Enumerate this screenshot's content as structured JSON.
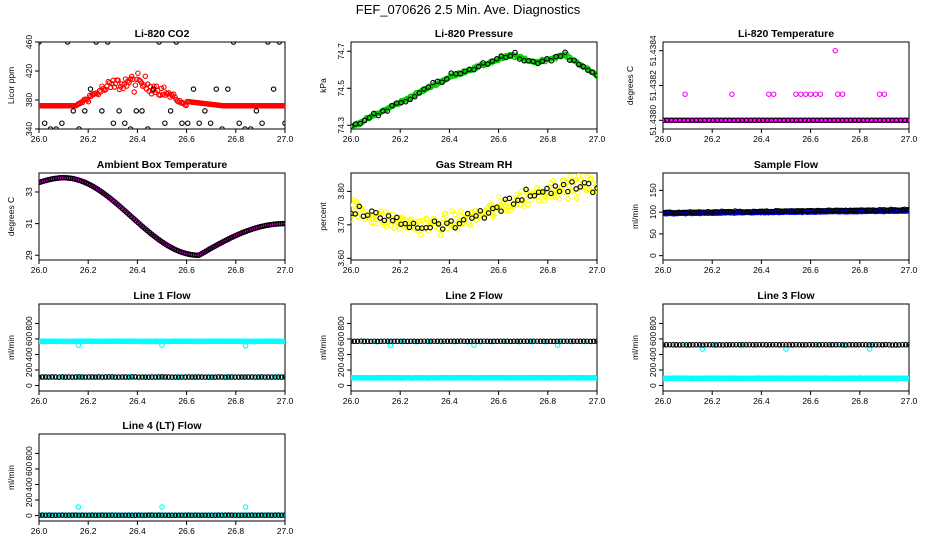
{
  "page": {
    "title": "FEF_070626  2.5 Min. Ave. Diagnostics"
  },
  "colors": {
    "red": "#ff0000",
    "green": "#00cc00",
    "black": "#000000",
    "magenta": "#ff00ff",
    "yellow": "#ffff00",
    "blue": "#0000ff",
    "cyan": "#00ffff"
  },
  "chart_data": [
    {
      "id": "co2",
      "type": "scatter",
      "title": "Li-820 CO2",
      "ylabel": "Licor ppm",
      "xlim": [
        26.0,
        27.0
      ],
      "xticks": [
        26.0,
        26.2,
        26.4,
        26.6,
        26.8,
        27.0
      ],
      "xtick_labels": [
        "26.0",
        "26.2",
        "26.4",
        "26.6",
        "26.8",
        "27.0"
      ],
      "ylim": [
        340,
        460
      ],
      "yticks": [
        340,
        380,
        420,
        460
      ],
      "ytick_labels": [
        "340",
        "380",
        "420",
        "460"
      ],
      "series": [
        {
          "name": "co2-main",
          "color": "red",
          "gen": {
            "kind": "co2",
            "n": 200,
            "base": 372,
            "hump": 32,
            "noise": 26
          }
        },
        {
          "name": "co2-extremes",
          "color": "black",
          "gen": {
            "kind": "levels",
            "n": 44,
            "levels": [
              340,
              348,
              365,
              395,
              460
            ]
          }
        }
      ]
    },
    {
      "id": "pressure",
      "type": "scatter",
      "title": "Li-820 Pressure",
      "ylabel": "kPa",
      "xlim": [
        26.0,
        27.0
      ],
      "xticks": [
        26.0,
        26.2,
        26.4,
        26.6,
        26.8,
        27.0
      ],
      "xtick_labels": [
        "26.0",
        "26.2",
        "26.4",
        "26.6",
        "26.8",
        "27.0"
      ],
      "ylim": [
        74.28,
        74.75
      ],
      "yticks": [
        74.3,
        74.5,
        74.7
      ],
      "ytick_labels": [
        "74.3",
        "74.5",
        "74.7"
      ],
      "series": [
        {
          "name": "pressure-main",
          "color": "green",
          "gen": {
            "kind": "pressure",
            "n": 220,
            "noise": 0.012
          }
        },
        {
          "name": "pressure-alt",
          "color": "black",
          "gen": {
            "kind": "pressure",
            "n": 55,
            "noise": 0.03
          }
        }
      ]
    },
    {
      "id": "licor-temp",
      "type": "scatter",
      "title": "Li-820 Temperature",
      "ylabel": "degrees C",
      "xlim": [
        26.0,
        27.0
      ],
      "xticks": [
        26.0,
        26.2,
        26.4,
        26.6,
        26.8,
        27.0
      ],
      "xtick_labels": [
        "26.0",
        "26.2",
        "26.4",
        "26.6",
        "26.8",
        "27.0"
      ],
      "ylim": [
        51.43795,
        51.43845
      ],
      "yticks": [
        51.438,
        51.4382,
        51.4384
      ],
      "ytick_labels": [
        "51.4380",
        "51.4382",
        "51.4384"
      ],
      "series": [
        {
          "name": "licor-temp-base",
          "color": "magenta",
          "gen": {
            "kind": "flat",
            "n": 230,
            "value": 51.438,
            "noise": 0
          }
        },
        {
          "name": "licor-temp-base-black",
          "color": "black",
          "gen": {
            "kind": "flat",
            "n": 60,
            "value": 51.438,
            "noise": 0
          }
        },
        {
          "name": "licor-temp-highs",
          "color": "magenta",
          "points": [
            [
              26.09,
              51.43815
            ],
            [
              26.28,
              51.43815
            ],
            [
              26.43,
              51.43815
            ],
            [
              26.45,
              51.43815
            ],
            [
              26.54,
              51.43815
            ],
            [
              26.56,
              51.43815
            ],
            [
              26.58,
              51.43815
            ],
            [
              26.6,
              51.43815
            ],
            [
              26.62,
              51.43815
            ],
            [
              26.64,
              51.43815
            ],
            [
              26.71,
              51.43815
            ],
            [
              26.73,
              51.43815
            ],
            [
              26.88,
              51.43815
            ],
            [
              26.9,
              51.43815
            ],
            [
              26.7,
              51.4384
            ]
          ]
        }
      ]
    },
    {
      "id": "box-temp",
      "type": "scatter",
      "title": "Ambient Box Temperature",
      "ylabel": "degrees C",
      "xlim": [
        26.0,
        27.0
      ],
      "xticks": [
        26.0,
        26.2,
        26.4,
        26.6,
        26.8,
        27.0
      ],
      "xtick_labels": [
        "26.0",
        "26.2",
        "26.4",
        "26.6",
        "26.8",
        "27.0"
      ],
      "ylim": [
        28.7,
        34.2
      ],
      "yticks": [
        29,
        31,
        33
      ],
      "ytick_labels": [
        "29",
        "31",
        "33"
      ],
      "series": [
        {
          "name": "box-temp-main",
          "color": "magenta",
          "gen": {
            "kind": "boxtemp",
            "n": 220,
            "noise": 0
          }
        },
        {
          "name": "box-temp-black",
          "color": "black",
          "gen": {
            "kind": "boxtemp",
            "n": 110,
            "noise": 0
          }
        }
      ]
    },
    {
      "id": "rh",
      "type": "scatter",
      "title": "Gas Stream RH",
      "ylabel": "percent",
      "xlim": [
        26.0,
        27.0
      ],
      "xticks": [
        26.0,
        26.2,
        26.4,
        26.6,
        26.8,
        27.0
      ],
      "xtick_labels": [
        "26.0",
        "26.2",
        "26.4",
        "26.6",
        "26.8",
        "27.0"
      ],
      "ylim": [
        3.595,
        3.855
      ],
      "yticks": [
        3.6,
        3.7,
        3.8
      ],
      "ytick_labels": [
        "3.60",
        "3.70",
        "3.80"
      ],
      "series": [
        {
          "name": "rh-main",
          "color": "yellow",
          "gen": {
            "kind": "rh",
            "n": 230,
            "noise": 0.05
          }
        },
        {
          "name": "rh-alt",
          "color": "black",
          "gen": {
            "kind": "rh",
            "n": 60,
            "noise": 0.035
          }
        }
      ]
    },
    {
      "id": "sample-flow",
      "type": "scatter",
      "title": "Sample Flow",
      "ylabel": "ml/min",
      "xlim": [
        26.0,
        27.0
      ],
      "xticks": [
        26.0,
        26.2,
        26.4,
        26.6,
        26.8,
        27.0
      ],
      "xtick_labels": [
        "26.0",
        "26.2",
        "26.4",
        "26.6",
        "26.8",
        "27.0"
      ],
      "ylim": [
        -10,
        190
      ],
      "yticks": [
        0,
        50,
        100,
        150
      ],
      "ytick_labels": [
        "0",
        "50",
        "100",
        "150"
      ],
      "series": [
        {
          "name": "sample-flow-main",
          "color": "blue",
          "gen": {
            "kind": "ramp",
            "n": 220,
            "v0": 97,
            "v1": 103,
            "noise": 2
          }
        },
        {
          "name": "sample-flow-black",
          "color": "black",
          "gen": {
            "kind": "ramp",
            "n": 110,
            "v0": 99,
            "v1": 106,
            "noise": 2
          }
        }
      ]
    },
    {
      "id": "line1",
      "type": "scatter",
      "title": "Line 1 Flow",
      "ylabel": "ml/min",
      "xlim": [
        26.0,
        27.0
      ],
      "xticks": [
        26.0,
        26.2,
        26.4,
        26.6,
        26.8,
        27.0
      ],
      "xtick_labels": [
        "26.0",
        "26.2",
        "26.4",
        "26.6",
        "26.8",
        "27.0"
      ],
      "ylim": [
        -70,
        1050
      ],
      "yticks": [
        0,
        200,
        400,
        600,
        800
      ],
      "ytick_labels": [
        "0",
        "200",
        "400",
        "600",
        "800"
      ],
      "series": [
        {
          "name": "line1-cyan-high",
          "color": "cyan",
          "gen": {
            "kind": "flat",
            "n": 200,
            "value": 570,
            "noise": 6,
            "dips": [
              [
                26.16,
                520
              ],
              [
                26.5,
                520
              ],
              [
                26.84,
                510
              ]
            ]
          }
        },
        {
          "name": "line1-cyan-low",
          "color": "cyan",
          "gen": {
            "kind": "flat",
            "n": 60,
            "value": 110,
            "noise": 4
          }
        },
        {
          "name": "line1-black",
          "color": "black",
          "gen": {
            "kind": "flat",
            "n": 75,
            "value": 110,
            "noise": 3
          }
        }
      ]
    },
    {
      "id": "line2",
      "type": "scatter",
      "title": "Line 2 Flow",
      "ylabel": "ml/min",
      "xlim": [
        26.0,
        27.0
      ],
      "xticks": [
        26.0,
        26.2,
        26.4,
        26.6,
        26.8,
        27.0
      ],
      "xtick_labels": [
        "26.0",
        "26.2",
        "26.4",
        "26.6",
        "26.8",
        "27.0"
      ],
      "ylim": [
        -70,
        1050
      ],
      "yticks": [
        0,
        200,
        400,
        600,
        800
      ],
      "ytick_labels": [
        "0",
        "200",
        "400",
        "600",
        "800"
      ],
      "series": [
        {
          "name": "line2-cyan-low",
          "color": "cyan",
          "gen": {
            "kind": "flat",
            "n": 220,
            "value": 100,
            "noise": 5
          }
        },
        {
          "name": "line2-cyan-high",
          "color": "cyan",
          "gen": {
            "kind": "flat",
            "n": 20,
            "value": 565,
            "noise": 4,
            "dips": [
              [
                26.16,
                520
              ],
              [
                26.5,
                520
              ],
              [
                26.84,
                520
              ]
            ]
          }
        },
        {
          "name": "line2-black",
          "color": "black",
          "gen": {
            "kind": "flat",
            "n": 75,
            "value": 570,
            "noise": 3
          }
        }
      ]
    },
    {
      "id": "line3",
      "type": "scatter",
      "title": "Line 3 Flow",
      "ylabel": "ml/min",
      "xlim": [
        26.0,
        27.0
      ],
      "xticks": [
        26.0,
        26.2,
        26.4,
        26.6,
        26.8,
        27.0
      ],
      "xtick_labels": [
        "26.0",
        "26.2",
        "26.4",
        "26.6",
        "26.8",
        "27.0"
      ],
      "ylim": [
        -70,
        1050
      ],
      "yticks": [
        0,
        200,
        400,
        600,
        800
      ],
      "ytick_labels": [
        "0",
        "200",
        "400",
        "600",
        "800"
      ],
      "series": [
        {
          "name": "line3-cyan-low",
          "color": "cyan",
          "gen": {
            "kind": "flat",
            "n": 220,
            "value": 95,
            "noise": 5
          }
        },
        {
          "name": "line3-cyan-high",
          "color": "cyan",
          "gen": {
            "kind": "flat",
            "n": 20,
            "value": 520,
            "noise": 4,
            "dips": [
              [
                26.16,
                470
              ],
              [
                26.5,
                470
              ],
              [
                26.84,
                470
              ]
            ]
          }
        },
        {
          "name": "line3-black",
          "color": "black",
          "gen": {
            "kind": "flat",
            "n": 75,
            "value": 525,
            "noise": 3
          }
        }
      ]
    },
    {
      "id": "line4",
      "type": "scatter",
      "title": "Line 4 (LT) Flow",
      "ylabel": "ml/min",
      "xlim": [
        26.0,
        27.0
      ],
      "xticks": [
        26.0,
        26.2,
        26.4,
        26.6,
        26.8,
        27.0
      ],
      "xtick_labels": [
        "26.0",
        "26.2",
        "26.4",
        "26.6",
        "26.8",
        "27.0"
      ],
      "ylim": [
        -70,
        1050
      ],
      "yticks": [
        0,
        200,
        400,
        600,
        800
      ],
      "ytick_labels": [
        "0",
        "200",
        "400",
        "600",
        "800"
      ],
      "series": [
        {
          "name": "line4-cyan",
          "color": "cyan",
          "gen": {
            "kind": "flat",
            "n": 200,
            "value": 5,
            "noise": 2
          }
        },
        {
          "name": "line4-black",
          "color": "black",
          "gen": {
            "kind": "flat",
            "n": 75,
            "value": 5,
            "noise": 2
          }
        },
        {
          "name": "line4-spikes",
          "color": "cyan",
          "points": [
            [
              26.16,
              110
            ],
            [
              26.5,
              110
            ],
            [
              26.84,
              110
            ]
          ]
        }
      ]
    }
  ]
}
